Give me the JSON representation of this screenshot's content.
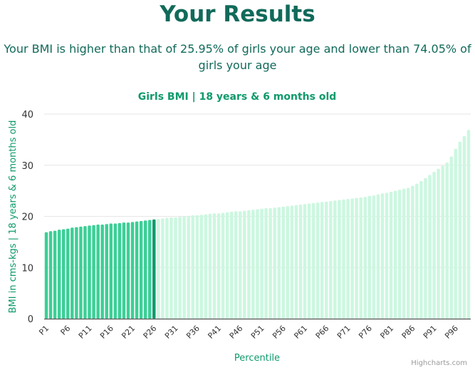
{
  "title": "Your Results",
  "summary": "Your BMI is higher than that of 25.95% of girls your age and lower than 74.05% of girls your age",
  "credits": "Highcharts.com",
  "colors": {
    "title": "#116a5a",
    "axis_label": "#0f9a6b",
    "bar_below": "#3ccf96",
    "bar_user": "#0f9a6b",
    "bar_above": "#ccf7e0",
    "grid": "#e6e6e6",
    "axis_line": "#555555",
    "tick_text": "#333333"
  },
  "chart_data": {
    "type": "bar",
    "title": "Girls BMI | 18 years & 6 months old",
    "xlabel": "Percentile",
    "ylabel": "BMI in cms-kgs | 18 years & 6 months old",
    "ylim": [
      0,
      40
    ],
    "yticks": [
      0,
      10,
      20,
      30,
      40
    ],
    "grid": true,
    "legend": "none",
    "highlight_category": "P26",
    "categories": [
      "P1",
      "P2",
      "P3",
      "P4",
      "P5",
      "P6",
      "P7",
      "P8",
      "P9",
      "P10",
      "P11",
      "P12",
      "P13",
      "P14",
      "P15",
      "P16",
      "P17",
      "P18",
      "P19",
      "P20",
      "P21",
      "P22",
      "P23",
      "P24",
      "P25",
      "P26",
      "P27",
      "P28",
      "P29",
      "P30",
      "P31",
      "P32",
      "P33",
      "P34",
      "P35",
      "P36",
      "P37",
      "P38",
      "P39",
      "P40",
      "P41",
      "P42",
      "P43",
      "P44",
      "P45",
      "P46",
      "P47",
      "P48",
      "P49",
      "P50",
      "P51",
      "P52",
      "P53",
      "P54",
      "P55",
      "P56",
      "P57",
      "P58",
      "P59",
      "P60",
      "P61",
      "P62",
      "P63",
      "P64",
      "P65",
      "P66",
      "P67",
      "P68",
      "P69",
      "P70",
      "P71",
      "P72",
      "P73",
      "P74",
      "P75",
      "P76",
      "P77",
      "P78",
      "P79",
      "P80",
      "P81",
      "P82",
      "P83",
      "P84",
      "P85",
      "P86",
      "P87",
      "P88",
      "P89",
      "P90",
      "P91",
      "P92",
      "P93",
      "P94",
      "P95",
      "P96",
      "P97",
      "P98",
      "P99"
    ],
    "xtick_labels": [
      "P1",
      "P6",
      "P11",
      "P16",
      "P21",
      "P26",
      "P31",
      "P36",
      "P41",
      "P46",
      "P51",
      "P56",
      "P61",
      "P66",
      "P71",
      "P76",
      "P81",
      "P86",
      "P91",
      "P96"
    ],
    "values": [
      16.9,
      17.1,
      17.2,
      17.4,
      17.5,
      17.6,
      17.8,
      17.9,
      18.0,
      18.1,
      18.2,
      18.3,
      18.4,
      18.4,
      18.5,
      18.6,
      18.6,
      18.7,
      18.8,
      18.8,
      18.9,
      19.0,
      19.1,
      19.2,
      19.3,
      19.4,
      19.5,
      19.6,
      19.7,
      19.8,
      19.8,
      19.9,
      20.0,
      20.1,
      20.2,
      20.2,
      20.3,
      20.4,
      20.5,
      20.6,
      20.6,
      20.7,
      20.8,
      20.9,
      21.0,
      21.0,
      21.1,
      21.2,
      21.3,
      21.4,
      21.5,
      21.6,
      21.6,
      21.7,
      21.8,
      21.9,
      22.0,
      22.1,
      22.2,
      22.3,
      22.4,
      22.5,
      22.6,
      22.7,
      22.8,
      22.9,
      23.0,
      23.1,
      23.2,
      23.3,
      23.4,
      23.5,
      23.6,
      23.7,
      23.8,
      24.0,
      24.1,
      24.3,
      24.5,
      24.6,
      24.8,
      25.0,
      25.2,
      25.4,
      25.6,
      26.0,
      26.4,
      26.9,
      27.5,
      28.1,
      28.7,
      29.3,
      29.9,
      30.5,
      31.7,
      33.2,
      34.6,
      35.7,
      36.9
    ]
  }
}
